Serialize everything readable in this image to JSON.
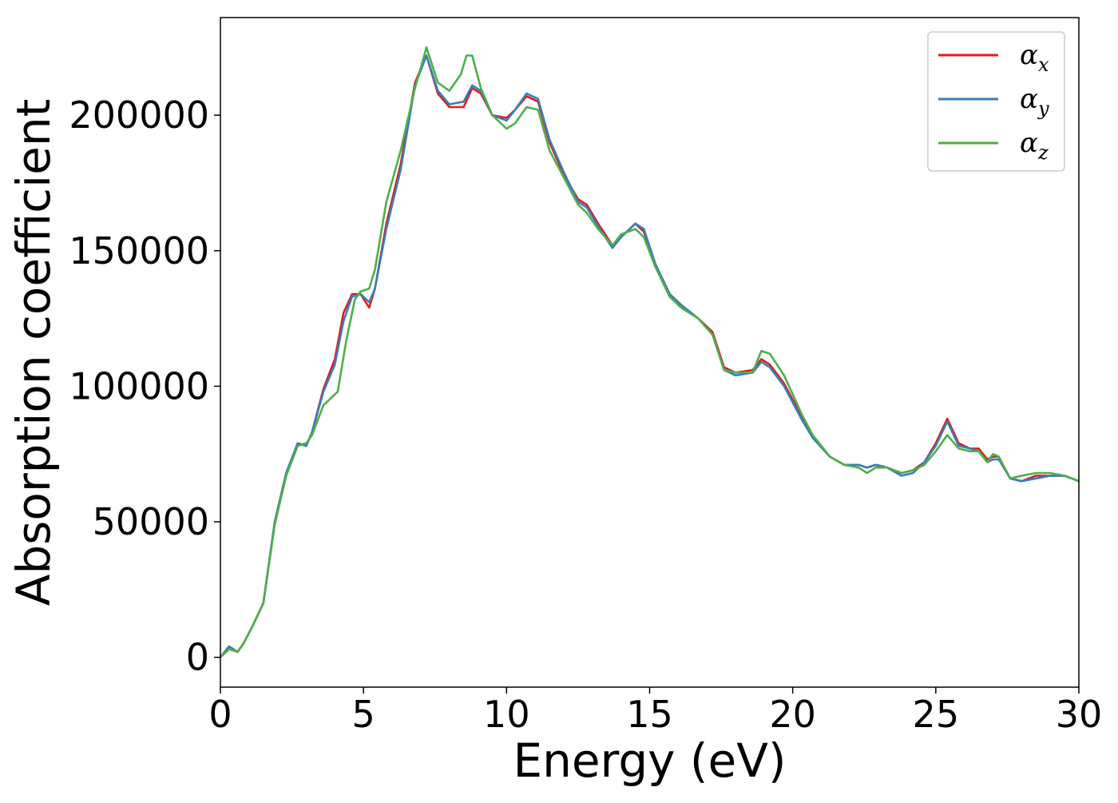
{
  "chart_data": {
    "type": "line",
    "xlabel": "Energy (eV)",
    "ylabel": "Absorption coefficient",
    "xlim": [
      0,
      30
    ],
    "ylim": [
      -11000,
      236000
    ],
    "xticks": [
      0,
      5,
      10,
      15,
      20,
      25,
      30
    ],
    "xtick_labels": [
      "0",
      "5",
      "10",
      "15",
      "20",
      "25",
      "30"
    ],
    "yticks": [
      0,
      50000,
      100000,
      150000,
      200000
    ],
    "ytick_labels": [
      "0",
      "50000",
      "100000",
      "150000",
      "200000"
    ],
    "grid": false,
    "legend_position": "top-right",
    "series": [
      {
        "name": "αx",
        "legend_base": "α",
        "legend_sub": "x",
        "color": "#e41a1c",
        "x": [
          0,
          0.3,
          0.6,
          0.8,
          1.1,
          1.5,
          1.9,
          2.3,
          2.7,
          3.0,
          3.2,
          3.6,
          4.0,
          4.3,
          4.6,
          4.9,
          5.2,
          5.4,
          5.8,
          6.3,
          6.8,
          7.2,
          7.6,
          8.0,
          8.5,
          8.8,
          9.1,
          9.5,
          10.0,
          10.3,
          10.7,
          11.1,
          11.5,
          12.0,
          12.5,
          12.8,
          13.2,
          13.7,
          14.0,
          14.5,
          14.8,
          15.2,
          15.7,
          16.1,
          16.7,
          17.2,
          17.6,
          18.0,
          18.6,
          18.9,
          19.2,
          19.7,
          20.3,
          20.7,
          21.3,
          21.8,
          22.3,
          22.6,
          22.9,
          23.3,
          23.8,
          24.2,
          24.6,
          25.0,
          25.4,
          25.8,
          26.2,
          26.5,
          26.8,
          27.0,
          27.2,
          27.6,
          28.0,
          28.5,
          29.0,
          29.5,
          30.0
        ],
        "y": [
          0,
          4000,
          2000,
          5000,
          11000,
          20000,
          50000,
          68000,
          79000,
          78000,
          83000,
          99000,
          110000,
          127000,
          134000,
          134000,
          129000,
          136000,
          160000,
          182000,
          212000,
          222000,
          208000,
          203000,
          203000,
          210000,
          208000,
          200000,
          199000,
          202000,
          207000,
          205000,
          190000,
          178000,
          169000,
          167000,
          160000,
          152000,
          155000,
          160000,
          157000,
          145000,
          134000,
          130000,
          125000,
          120000,
          107000,
          105000,
          106000,
          110000,
          108000,
          101000,
          89000,
          81000,
          74000,
          71000,
          71000,
          70000,
          71000,
          70000,
          68000,
          69000,
          72000,
          79000,
          88000,
          79000,
          77000,
          77000,
          73000,
          74000,
          74000,
          66000,
          65000,
          67000,
          67000,
          67000,
          65000
        ]
      },
      {
        "name": "αy",
        "legend_base": "α",
        "legend_sub": "y",
        "color": "#377eb8",
        "x": [
          0,
          0.3,
          0.6,
          0.8,
          1.1,
          1.5,
          1.9,
          2.3,
          2.7,
          3.0,
          3.2,
          3.6,
          4.0,
          4.3,
          4.6,
          4.9,
          5.2,
          5.4,
          5.8,
          6.3,
          6.8,
          7.2,
          7.6,
          8.0,
          8.5,
          8.8,
          9.1,
          9.5,
          10.0,
          10.3,
          10.7,
          11.1,
          11.5,
          12.0,
          12.5,
          12.8,
          13.2,
          13.7,
          14.0,
          14.5,
          14.8,
          15.2,
          15.7,
          16.1,
          16.7,
          17.2,
          17.6,
          18.0,
          18.6,
          18.9,
          19.2,
          19.7,
          20.3,
          20.7,
          21.3,
          21.8,
          22.3,
          22.6,
          22.9,
          23.3,
          23.8,
          24.2,
          24.6,
          25.0,
          25.4,
          25.8,
          26.2,
          26.5,
          26.8,
          27.0,
          27.2,
          27.6,
          28.0,
          28.5,
          29.0,
          29.5,
          30.0
        ],
        "y": [
          0,
          4000,
          2000,
          5000,
          11000,
          20000,
          50000,
          68000,
          79000,
          78000,
          83000,
          98000,
          108000,
          124000,
          133000,
          134000,
          131000,
          136000,
          158000,
          180000,
          211000,
          222000,
          209000,
          204000,
          205000,
          211000,
          209000,
          200000,
          198000,
          202000,
          208000,
          206000,
          191000,
          179000,
          168000,
          166000,
          159000,
          151000,
          155000,
          160000,
          158000,
          145000,
          134000,
          130000,
          125000,
          119000,
          106000,
          104000,
          105000,
          109000,
          107000,
          100000,
          88000,
          81000,
          74000,
          71000,
          71000,
          70000,
          71000,
          70000,
          67000,
          68000,
          72000,
          78000,
          87000,
          78000,
          77000,
          76000,
          72000,
          73000,
          73000,
          66000,
          65000,
          66000,
          67000,
          67000,
          65000
        ]
      },
      {
        "name": "αz",
        "legend_base": "α",
        "legend_sub": "z",
        "color": "#4daf4a",
        "x": [
          0,
          0.3,
          0.6,
          0.8,
          1.1,
          1.5,
          1.9,
          2.3,
          2.7,
          3.0,
          3.2,
          3.6,
          3.8,
          4.1,
          4.4,
          4.7,
          4.9,
          5.2,
          5.4,
          5.8,
          6.3,
          6.8,
          7.2,
          7.6,
          8.0,
          8.4,
          8.6,
          8.8,
          9.1,
          9.5,
          10.0,
          10.3,
          10.7,
          11.1,
          11.5,
          12.0,
          12.5,
          12.8,
          13.2,
          13.7,
          14.0,
          14.5,
          14.8,
          15.2,
          15.7,
          16.1,
          16.7,
          17.2,
          17.6,
          18.0,
          18.6,
          18.9,
          19.2,
          19.7,
          20.3,
          20.7,
          21.3,
          21.8,
          22.3,
          22.6,
          22.9,
          23.3,
          23.8,
          24.2,
          24.6,
          25.0,
          25.4,
          25.8,
          26.2,
          26.5,
          26.8,
          27.0,
          27.2,
          27.6,
          28.0,
          28.5,
          29.0,
          29.5,
          30.0
        ],
        "y": [
          0,
          3000,
          2000,
          5000,
          11000,
          20000,
          49000,
          67000,
          78000,
          79000,
          82000,
          93000,
          95000,
          98000,
          117000,
          132000,
          135000,
          136000,
          143000,
          168000,
          187000,
          210000,
          225000,
          212000,
          209000,
          215000,
          222000,
          222000,
          210000,
          200000,
          195000,
          197000,
          203000,
          202000,
          187000,
          177000,
          167000,
          164000,
          158000,
          152000,
          156000,
          158000,
          155000,
          144000,
          133000,
          129000,
          125000,
          119000,
          106000,
          105000,
          105000,
          113000,
          112000,
          104000,
          90000,
          82000,
          74000,
          71000,
          70000,
          68000,
          70000,
          70000,
          68000,
          69000,
          71000,
          76000,
          82000,
          77000,
          76000,
          76000,
          72000,
          75000,
          74000,
          66000,
          67000,
          68000,
          68000,
          67000,
          65000
        ]
      }
    ]
  }
}
